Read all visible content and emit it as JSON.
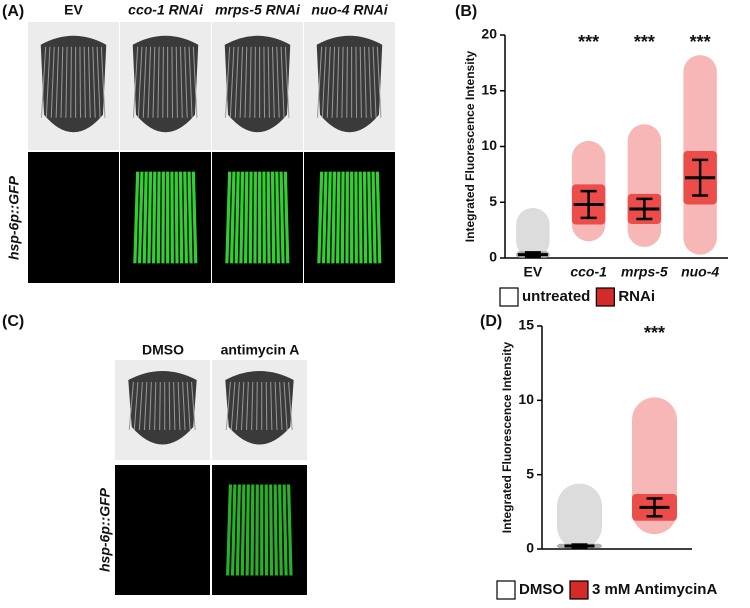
{
  "panel_a": {
    "label": "(A)",
    "columns": [
      "EV",
      "cco-1 RNAi",
      "mrps-5 RNAi",
      "nuo-4 RNAi"
    ],
    "row_label": "hsp-6p::GFP"
  },
  "panel_c": {
    "label": "(C)",
    "columns": [
      "DMSO",
      "antimycin A"
    ],
    "row_label": "hsp-6p::GFP"
  },
  "chart_data": [
    {
      "type": "dot",
      "panel_label": "(B)",
      "y_label": "Integrated Fluorescence Intensity",
      "categories": [
        "EV",
        "cco-1",
        "mrps-5",
        "nuo-4"
      ],
      "ylim": [
        0,
        20
      ],
      "yticks": [
        0,
        5,
        10,
        15,
        20
      ],
      "annotations": [
        null,
        "***",
        "***",
        "***"
      ],
      "series": [
        {
          "name": "untreated",
          "color": "#ffffff",
          "point_color": "#9a9a9a",
          "values": [
            0.3,
            null,
            null,
            null
          ],
          "errors": [
            0.2,
            null,
            null,
            null
          ],
          "min": [
            0,
            null,
            null,
            null
          ],
          "max": [
            4.5,
            null,
            null,
            null
          ]
        },
        {
          "name": "RNAi",
          "color": "#d42a2a",
          "point_color": "#e8312f",
          "values": [
            null,
            4.8,
            4.4,
            7.2
          ],
          "errors": [
            null,
            1.2,
            0.9,
            1.6
          ],
          "min": [
            null,
            1.5,
            1.0,
            0.3
          ],
          "max": [
            null,
            10.5,
            12.0,
            18.2
          ]
        }
      ]
    },
    {
      "type": "dot",
      "panel_label": "(D)",
      "y_label": "Integrated Fluorescence Intensity",
      "categories": [
        null,
        null
      ],
      "ylim": [
        0,
        15
      ],
      "yticks": [
        0,
        5,
        10,
        15
      ],
      "annotations": [
        null,
        "***"
      ],
      "series": [
        {
          "name": "DMSO",
          "color": "#ffffff",
          "point_color": "#9a9a9a",
          "values": [
            0.2,
            null
          ],
          "errors": [
            0.1,
            null
          ],
          "min": [
            0,
            null
          ],
          "max": [
            4.4,
            null
          ]
        },
        {
          "name": "3 mM AntimycinA",
          "color": "#d42a2a",
          "point_color": "#e8312f",
          "values": [
            null,
            2.8
          ],
          "errors": [
            null,
            0.6
          ],
          "min": [
            null,
            1.0
          ],
          "max": [
            null,
            10.2
          ]
        }
      ]
    }
  ]
}
